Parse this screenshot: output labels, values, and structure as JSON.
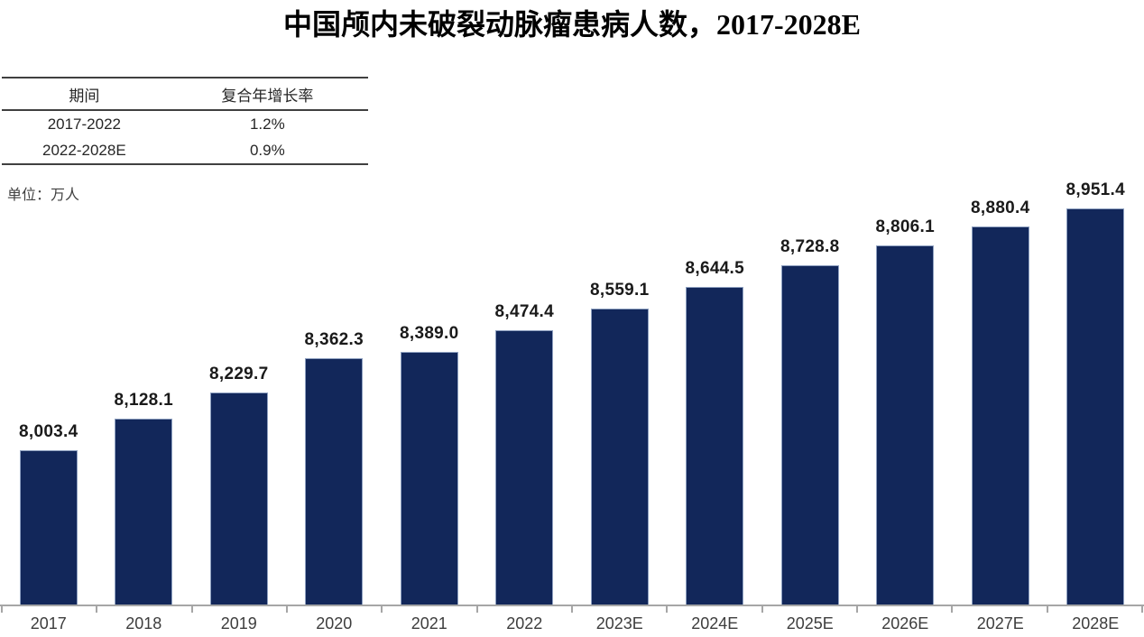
{
  "title": "中国颅内未破裂动脉瘤患病人数，2017-2028E",
  "unit_label": "单位：万人",
  "cagr_table": {
    "headers": [
      "期间",
      "复合年增长率"
    ],
    "rows": [
      [
        "2017-2022",
        "1.2%"
      ],
      [
        "2022-2028E",
        "0.9%"
      ]
    ]
  },
  "chart_data": {
    "type": "bar",
    "title": "中国颅内未破裂动脉瘤患病人数，2017-2028E",
    "unit": "万人",
    "categories": [
      "2017",
      "2018",
      "2019",
      "2020",
      "2021",
      "2022",
      "2023E",
      "2024E",
      "2025E",
      "2026E",
      "2027E",
      "2028E"
    ],
    "values": [
      8003.4,
      8128.1,
      8229.7,
      8362.3,
      8389.0,
      8474.4,
      8559.1,
      8644.5,
      8728.8,
      8806.1,
      8880.4,
      8951.4
    ],
    "value_labels": [
      "8,003.4",
      "8,128.1",
      "8,229.7",
      "8,362.3",
      "8,389.0",
      "8,474.4",
      "8,559.1",
      "8,644.5",
      "8,728.8",
      "8,806.1",
      "8,880.4",
      "8,951.4"
    ],
    "ylim": [
      7400,
      8970
    ],
    "grid": false,
    "legend": false,
    "bar_color": "#12275a",
    "bar_border_color": "#8ea0c0",
    "axis_color": "#a6a6a6",
    "value_label_color": "#1a1a1a",
    "x_label_color": "#3d3d3d"
  }
}
